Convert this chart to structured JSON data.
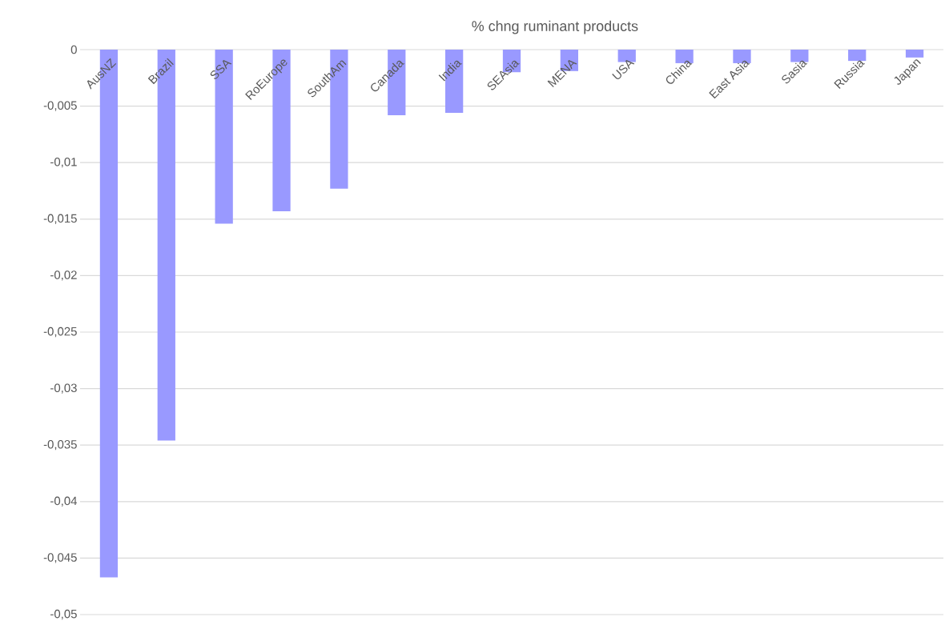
{
  "chart_data": {
    "type": "bar",
    "title": "% chng ruminant products",
    "categories": [
      "AusNZ",
      "Brazil",
      "SSA",
      "RoEurope",
      "SouthAm",
      "Canada",
      "India",
      "SEAsia",
      "MENA",
      "USA",
      "China",
      "East Asia",
      "Sasia",
      "Russia",
      "Japan"
    ],
    "values": [
      -0.0467,
      -0.0346,
      -0.0154,
      -0.0143,
      -0.0123,
      -0.0058,
      -0.0056,
      -0.002,
      -0.0019,
      -0.0011,
      -0.0012,
      -0.0012,
      -0.0011,
      -0.001,
      -0.0007
    ],
    "color": "#9999ff",
    "ylim": [
      -0.05,
      0
    ],
    "yticks": [
      {
        "value": -0.05,
        "label": "-0,05"
      },
      {
        "value": -0.045,
        "label": "-0,045"
      },
      {
        "value": -0.04,
        "label": "-0,04"
      },
      {
        "value": -0.035,
        "label": "-0,035"
      },
      {
        "value": -0.03,
        "label": "-0,03"
      },
      {
        "value": -0.025,
        "label": "-0,025"
      },
      {
        "value": -0.02,
        "label": "-0,02"
      },
      {
        "value": -0.015,
        "label": "-0,015"
      },
      {
        "value": -0.01,
        "label": "-0,01"
      },
      {
        "value": -0.005,
        "label": "-0,005"
      },
      {
        "value": 0,
        "label": "0"
      }
    ],
    "grid": "y"
  }
}
